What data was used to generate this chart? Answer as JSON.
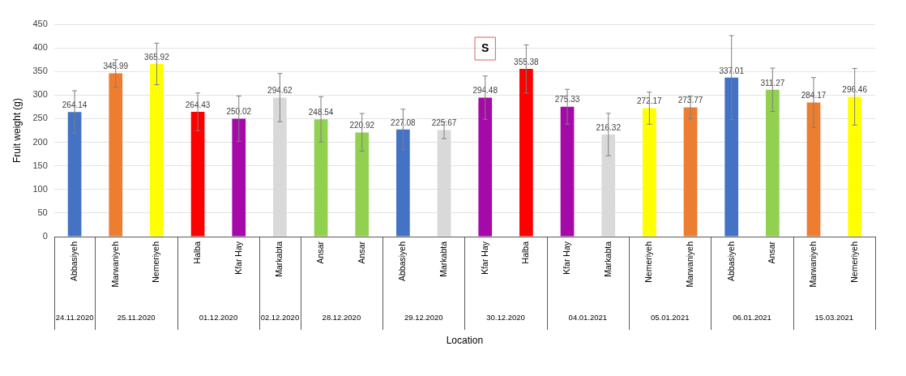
{
  "chart_data": {
    "type": "bar",
    "xlabel": "Location",
    "ylabel": "Fruit weight (g)",
    "categories": [
      "Abbasiyeh",
      "Marwaniyeh",
      "Nemeriyeh",
      "Halba",
      "Kfar Hay",
      "Markabta",
      "Ansar",
      "Ansar",
      "Abbasiyeh",
      "Markabta",
      "Kfar Hay",
      "Halba",
      "Kfar Hay",
      "Markabta",
      "Nemeriyeh",
      "Marwaniyeh",
      "Abbasiyeh",
      "Ansar",
      "Marwaniyeh",
      "Nemeriyeh"
    ],
    "values": [
      264.14,
      345.99,
      365.92,
      264.43,
      250.02,
      294.62,
      248.54,
      220.92,
      227.08,
      225.67,
      294.48,
      355.38,
      275.33,
      216.32,
      272.17,
      273.77,
      337.01,
      311.27,
      284.17,
      296.46
    ],
    "errors": [
      45,
      29,
      44,
      40,
      48,
      51,
      48,
      40,
      43,
      18,
      46,
      51,
      37,
      45,
      34,
      24,
      89,
      46,
      53,
      60
    ],
    "colors": [
      "#4472c4",
      "#ed7d31",
      "#ffff00",
      "#ff0000",
      "#a50aa8",
      "#d9d9d9",
      "#92d050",
      "#92d050",
      "#4472c4",
      "#d9d9d9",
      "#a50aa8",
      "#ff0000",
      "#a50aa8",
      "#d9d9d9",
      "#ffff00",
      "#ed7d31",
      "#4472c4",
      "#92d050",
      "#ed7d31",
      "#ffff00"
    ],
    "data_labels": true,
    "ylim": [
      0,
      450
    ],
    "yticks": [
      0,
      50,
      100,
      150,
      200,
      250,
      300,
      350,
      400,
      450
    ],
    "grid": "y",
    "legend": false,
    "annotations": [
      "24.11.2020",
      "25.11.2020",
      "01.12.2020",
      "02.12.2020",
      "28.12.2020",
      "29.12.2020",
      "30.12.2020",
      "04.01.2021",
      "05.01.2021",
      "06.01.2021",
      "15.03.2021",
      "S"
    ]
  }
}
